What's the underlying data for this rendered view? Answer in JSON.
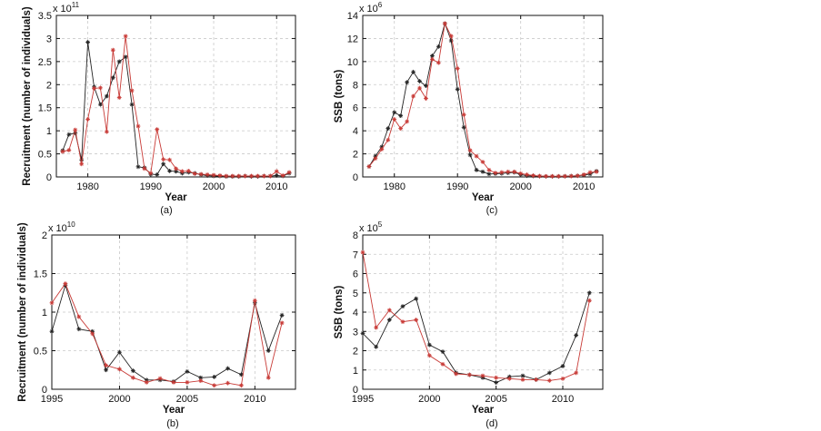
{
  "colors": {
    "black_series": "#222222",
    "red_series": "#c83a36"
  },
  "chart_data": [
    {
      "id": "a",
      "type": "line",
      "caption": "(a)",
      "xlabel": "Year",
      "ylabel": "Recruitment (number of individuals)",
      "exponent_base": "x 10",
      "exponent_power": "11",
      "xlim": [
        1975,
        2013
      ],
      "ylim": [
        0,
        3.5
      ],
      "xticks": [
        1980,
        1990,
        2000,
        2010
      ],
      "yticks": [
        0,
        0.5,
        1,
        1.5,
        2,
        2.5,
        3,
        3.5
      ],
      "xtick_labels": [
        "1980",
        "1990",
        "2000",
        "2010"
      ],
      "ytick_labels": [
        "0",
        "0.5",
        "1",
        "1.5",
        "2",
        "2.5",
        "3",
        "3.5"
      ],
      "grid": true,
      "series": [
        {
          "name": "black",
          "x": [
            1976,
            1977,
            1978,
            1979,
            1980,
            1981,
            1982,
            1983,
            1984,
            1985,
            1986,
            1987,
            1988,
            1989,
            1990,
            1991,
            1992,
            1993,
            1994,
            1995,
            1996,
            1997,
            1998,
            1999,
            2000,
            2001,
            2002,
            2003,
            2004,
            2005,
            2006,
            2007,
            2008,
            2009,
            2010,
            2011,
            2012
          ],
          "values": [
            0.57,
            0.92,
            0.95,
            0.37,
            2.92,
            1.95,
            1.57,
            1.75,
            2.15,
            2.5,
            2.6,
            1.57,
            0.22,
            0.2,
            0.06,
            0.05,
            0.28,
            0.13,
            0.12,
            0.08,
            0.1,
            0.08,
            0.05,
            0.03,
            0.02,
            0.02,
            0.01,
            0.01,
            0.01,
            0.02,
            0.01,
            0.01,
            0.02,
            0.02,
            0.03,
            0.02,
            0.08
          ]
        },
        {
          "name": "red",
          "x": [
            1976,
            1977,
            1978,
            1979,
            1980,
            1981,
            1982,
            1983,
            1984,
            1985,
            1986,
            1987,
            1988,
            1989,
            1990,
            1991,
            1992,
            1993,
            1994,
            1995,
            1996,
            1997,
            1998,
            1999,
            2000,
            2001,
            2002,
            2003,
            2004,
            2005,
            2006,
            2007,
            2008,
            2009,
            2010,
            2011,
            2012
          ],
          "values": [
            0.55,
            0.58,
            1.02,
            0.28,
            1.25,
            1.92,
            1.93,
            0.98,
            2.75,
            1.72,
            3.05,
            1.87,
            1.1,
            0.18,
            0.08,
            1.03,
            0.38,
            0.37,
            0.18,
            0.12,
            0.13,
            0.07,
            0.06,
            0.05,
            0.04,
            0.03,
            0.02,
            0.02,
            0.02,
            0.02,
            0.02,
            0.02,
            0.02,
            0.02,
            0.12,
            0.03,
            0.1
          ]
        }
      ]
    },
    {
      "id": "c",
      "type": "line",
      "caption": "(c)",
      "xlabel": "Year",
      "ylabel": "SSB (tons)",
      "exponent_base": "x 10",
      "exponent_power": "6",
      "xlim": [
        1975,
        2013
      ],
      "ylim": [
        0,
        14
      ],
      "xticks": [
        1980,
        1990,
        2000,
        2010
      ],
      "yticks": [
        0,
        2,
        4,
        6,
        8,
        10,
        12,
        14
      ],
      "xtick_labels": [
        "1980",
        "1990",
        "2000",
        "2010"
      ],
      "ytick_labels": [
        "0",
        "2",
        "4",
        "6",
        "8",
        "10",
        "12",
        "14"
      ],
      "grid": true,
      "series": [
        {
          "name": "black",
          "x": [
            1976,
            1977,
            1978,
            1979,
            1980,
            1981,
            1982,
            1983,
            1984,
            1985,
            1986,
            1987,
            1988,
            1989,
            1990,
            1991,
            1992,
            1993,
            1994,
            1995,
            1996,
            1997,
            1998,
            1999,
            2000,
            2001,
            2002,
            2003,
            2004,
            2005,
            2006,
            2007,
            2008,
            2009,
            2010,
            2011,
            2012
          ],
          "values": [
            0.9,
            1.8,
            2.6,
            4.2,
            5.6,
            5.3,
            8.2,
            9.1,
            8.3,
            7.9,
            10.5,
            11.3,
            13.3,
            11.8,
            7.6,
            4.3,
            1.9,
            0.6,
            0.45,
            0.25,
            0.28,
            0.3,
            0.35,
            0.4,
            0.2,
            0.1,
            0.08,
            0.06,
            0.05,
            0.05,
            0.05,
            0.06,
            0.08,
            0.1,
            0.15,
            0.25,
            0.5
          ]
        },
        {
          "name": "red",
          "x": [
            1976,
            1977,
            1978,
            1979,
            1980,
            1981,
            1982,
            1983,
            1984,
            1985,
            1986,
            1987,
            1988,
            1989,
            1990,
            1991,
            1992,
            1993,
            1994,
            1995,
            1996,
            1997,
            1998,
            1999,
            2000,
            2001,
            2002,
            2003,
            2004,
            2005,
            2006,
            2007,
            2008,
            2009,
            2010,
            2011,
            2012
          ],
          "values": [
            0.9,
            1.6,
            2.4,
            3.2,
            5.0,
            4.2,
            4.8,
            7.0,
            7.7,
            6.8,
            10.2,
            9.9,
            13.3,
            12.2,
            9.4,
            5.4,
            2.3,
            1.8,
            1.3,
            0.6,
            0.35,
            0.4,
            0.45,
            0.45,
            0.3,
            0.2,
            0.12,
            0.08,
            0.06,
            0.06,
            0.06,
            0.06,
            0.07,
            0.1,
            0.2,
            0.4,
            0.45
          ]
        }
      ]
    },
    {
      "id": "b",
      "type": "line",
      "caption": "(b)",
      "xlabel": "Year",
      "ylabel": "Recruitment (number of individuals)",
      "exponent_base": "x 10",
      "exponent_power": "10",
      "xlim": [
        1995,
        2013
      ],
      "ylim": [
        0,
        2
      ],
      "xticks": [
        1995,
        2000,
        2005,
        2010
      ],
      "yticks": [
        0,
        0.5,
        1,
        1.5,
        2
      ],
      "xtick_labels": [
        "1995",
        "2000",
        "2005",
        "2010"
      ],
      "ytick_labels": [
        "0",
        "0.5",
        "1",
        "1.5",
        "2"
      ],
      "grid": true,
      "series": [
        {
          "name": "black",
          "x": [
            1995,
            1996,
            1997,
            1998,
            1999,
            2000,
            2001,
            2002,
            2003,
            2004,
            2005,
            2006,
            2007,
            2008,
            2009,
            2010,
            2011,
            2012
          ],
          "values": [
            0.75,
            1.35,
            0.78,
            0.75,
            0.25,
            0.48,
            0.24,
            0.12,
            0.12,
            0.1,
            0.23,
            0.15,
            0.16,
            0.27,
            0.19,
            1.12,
            0.5,
            0.96
          ]
        },
        {
          "name": "red",
          "x": [
            1995,
            1996,
            1997,
            1998,
            1999,
            2000,
            2001,
            2002,
            2003,
            2004,
            2005,
            2006,
            2007,
            2008,
            2009,
            2010,
            2011,
            2012
          ],
          "values": [
            1.12,
            1.37,
            0.94,
            0.72,
            0.31,
            0.26,
            0.15,
            0.09,
            0.14,
            0.09,
            0.09,
            0.11,
            0.05,
            0.08,
            0.05,
            1.15,
            0.15,
            0.86
          ]
        }
      ]
    },
    {
      "id": "d",
      "type": "line",
      "caption": "(d)",
      "xlabel": "Year",
      "ylabel": "SSB (tons)",
      "exponent_base": "x 10",
      "exponent_power": "5",
      "xlim": [
        1995,
        2013
      ],
      "ylim": [
        0,
        8
      ],
      "xticks": [
        1995,
        2000,
        2005,
        2010
      ],
      "yticks": [
        0,
        1,
        2,
        3,
        4,
        5,
        6,
        7,
        8
      ],
      "xtick_labels": [
        "1995",
        "2000",
        "2005",
        "2010"
      ],
      "ytick_labels": [
        "0",
        "1",
        "2",
        "3",
        "4",
        "5",
        "6",
        "7",
        "8"
      ],
      "grid": true,
      "series": [
        {
          "name": "black",
          "x": [
            1995,
            1996,
            1997,
            1998,
            1999,
            2000,
            2001,
            2002,
            2003,
            2004,
            2005,
            2006,
            2007,
            2008,
            2009,
            2010,
            2011,
            2012
          ],
          "values": [
            2.9,
            2.2,
            3.6,
            4.3,
            4.7,
            2.3,
            1.95,
            0.85,
            0.75,
            0.6,
            0.35,
            0.65,
            0.7,
            0.5,
            0.85,
            1.2,
            2.8,
            5.0
          ]
        },
        {
          "name": "red",
          "x": [
            1995,
            1996,
            1997,
            1998,
            1999,
            2000,
            2001,
            2002,
            2003,
            2004,
            2005,
            2006,
            2007,
            2008,
            2009,
            2010,
            2011,
            2012
          ],
          "values": [
            7.1,
            3.2,
            4.1,
            3.5,
            3.6,
            1.75,
            1.3,
            0.8,
            0.75,
            0.7,
            0.6,
            0.55,
            0.5,
            0.5,
            0.45,
            0.55,
            0.85,
            4.6
          ]
        }
      ]
    }
  ]
}
